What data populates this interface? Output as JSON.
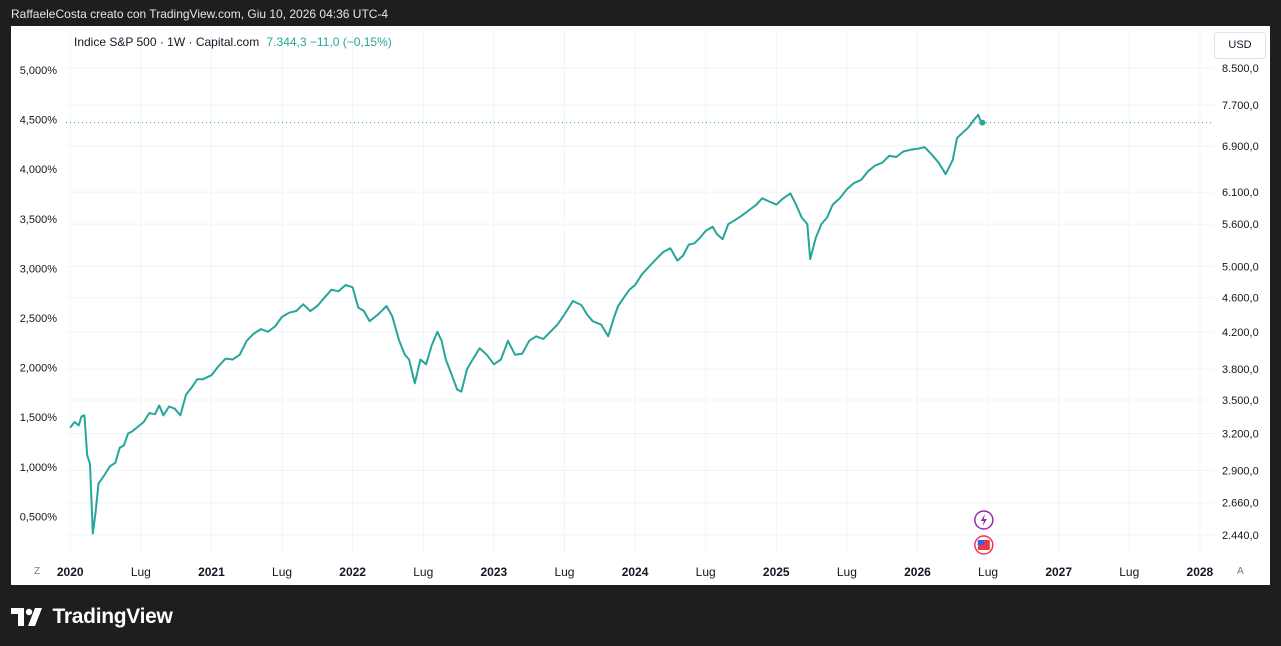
{
  "header": {
    "title": "RaffaeleCosta creato con TradingView.com, Giu 10, 2026 04:36 UTC-4"
  },
  "legend": {
    "symbol": "Indice S&P 500 · 1W · Capital.com",
    "values": "7.344,3  −11,0 (−0,15%)"
  },
  "currency_button": "USD",
  "scale_buttons": {
    "left": "Z",
    "right": "A"
  },
  "footer": {
    "brand": "TradingView"
  },
  "colors": {
    "series": "#26a69a",
    "background": "#ffffff",
    "frame": "#1e1e1e",
    "grid": "#f0f3fa"
  },
  "chart_data": {
    "type": "line",
    "title": "Indice S&P 500 · 1W · Capital.com",
    "left_axis_ticks": [
      "5,000%",
      "4,500%",
      "4,000%",
      "3,500%",
      "3,000%",
      "2,500%",
      "2,000%",
      "1,500%",
      "1,000%",
      "0,500%"
    ],
    "right_axis_ticks": [
      "8.500,0",
      "7.700,0",
      "6.900,0",
      "6.100,0",
      "5.600,0",
      "5.000,0",
      "4.600,0",
      "4.200,0",
      "3.800,0",
      "3.500,0",
      "3.200,0",
      "2.900,0",
      "2.660,0",
      "2.440,0"
    ],
    "x_axis_ticks": [
      "2020",
      "Lug",
      "2021",
      "Lug",
      "2022",
      "Lug",
      "2023",
      "Lug",
      "2024",
      "Lug",
      "2025",
      "Lug",
      "2026",
      "Lug",
      "2027",
      "Lug",
      "2028"
    ],
    "scale": "log",
    "last_value": 7344.3,
    "series": [
      {
        "values": [
          [
            2020.0,
            3250
          ],
          [
            2020.03,
            3300
          ],
          [
            2020.06,
            3270
          ],
          [
            2020.08,
            3350
          ],
          [
            2020.1,
            3360
          ],
          [
            2020.12,
            3020
          ],
          [
            2020.14,
            2950
          ],
          [
            2020.16,
            2450
          ],
          [
            2020.18,
            2600
          ],
          [
            2020.2,
            2800
          ],
          [
            2020.24,
            2860
          ],
          [
            2020.28,
            2930
          ],
          [
            2020.32,
            2960
          ],
          [
            2020.35,
            3080
          ],
          [
            2020.38,
            3100
          ],
          [
            2020.41,
            3200
          ],
          [
            2020.44,
            3220
          ],
          [
            2020.48,
            3260
          ],
          [
            2020.52,
            3300
          ],
          [
            2020.56,
            3380
          ],
          [
            2020.6,
            3370
          ],
          [
            2020.63,
            3450
          ],
          [
            2020.66,
            3360
          ],
          [
            2020.7,
            3440
          ],
          [
            2020.74,
            3420
          ],
          [
            2020.78,
            3360
          ],
          [
            2020.82,
            3550
          ],
          [
            2020.86,
            3620
          ],
          [
            2020.9,
            3700
          ],
          [
            2020.94,
            3700
          ],
          [
            2021.0,
            3740
          ],
          [
            2021.05,
            3830
          ],
          [
            2021.1,
            3910
          ],
          [
            2021.15,
            3900
          ],
          [
            2021.2,
            3950
          ],
          [
            2021.25,
            4100
          ],
          [
            2021.3,
            4180
          ],
          [
            2021.35,
            4230
          ],
          [
            2021.4,
            4200
          ],
          [
            2021.45,
            4260
          ],
          [
            2021.5,
            4370
          ],
          [
            2021.55,
            4420
          ],
          [
            2021.6,
            4440
          ],
          [
            2021.65,
            4520
          ],
          [
            2021.7,
            4440
          ],
          [
            2021.75,
            4500
          ],
          [
            2021.8,
            4600
          ],
          [
            2021.85,
            4700
          ],
          [
            2021.9,
            4680
          ],
          [
            2021.95,
            4760
          ],
          [
            2022.0,
            4730
          ],
          [
            2022.04,
            4480
          ],
          [
            2022.08,
            4440
          ],
          [
            2022.12,
            4320
          ],
          [
            2022.18,
            4400
          ],
          [
            2022.24,
            4500
          ],
          [
            2022.28,
            4380
          ],
          [
            2022.33,
            4100
          ],
          [
            2022.37,
            3950
          ],
          [
            2022.4,
            3900
          ],
          [
            2022.44,
            3660
          ],
          [
            2022.48,
            3900
          ],
          [
            2022.52,
            3850
          ],
          [
            2022.56,
            4050
          ],
          [
            2022.6,
            4200
          ],
          [
            2022.63,
            4100
          ],
          [
            2022.66,
            3900
          ],
          [
            2022.7,
            3750
          ],
          [
            2022.74,
            3600
          ],
          [
            2022.77,
            3580
          ],
          [
            2022.81,
            3800
          ],
          [
            2022.85,
            3900
          ],
          [
            2022.9,
            4020
          ],
          [
            2022.95,
            3950
          ],
          [
            2023.0,
            3850
          ],
          [
            2023.05,
            3900
          ],
          [
            2023.1,
            4100
          ],
          [
            2023.15,
            3950
          ],
          [
            2023.2,
            3960
          ],
          [
            2023.25,
            4100
          ],
          [
            2023.3,
            4150
          ],
          [
            2023.35,
            4120
          ],
          [
            2023.4,
            4200
          ],
          [
            2023.45,
            4280
          ],
          [
            2023.5,
            4400
          ],
          [
            2023.56,
            4560
          ],
          [
            2023.62,
            4510
          ],
          [
            2023.66,
            4400
          ],
          [
            2023.7,
            4320
          ],
          [
            2023.76,
            4280
          ],
          [
            2023.81,
            4150
          ],
          [
            2023.85,
            4360
          ],
          [
            2023.88,
            4500
          ],
          [
            2023.92,
            4600
          ],
          [
            2023.96,
            4700
          ],
          [
            2024.0,
            4760
          ],
          [
            2024.05,
            4900
          ],
          [
            2024.1,
            5000
          ],
          [
            2024.15,
            5100
          ],
          [
            2024.2,
            5200
          ],
          [
            2024.25,
            5250
          ],
          [
            2024.3,
            5080
          ],
          [
            2024.34,
            5150
          ],
          [
            2024.38,
            5300
          ],
          [
            2024.42,
            5320
          ],
          [
            2024.46,
            5400
          ],
          [
            2024.5,
            5500
          ],
          [
            2024.55,
            5560
          ],
          [
            2024.58,
            5450
          ],
          [
            2024.62,
            5380
          ],
          [
            2024.66,
            5600
          ],
          [
            2024.7,
            5650
          ],
          [
            2024.75,
            5720
          ],
          [
            2024.8,
            5800
          ],
          [
            2024.86,
            5900
          ],
          [
            2024.9,
            6000
          ],
          [
            2024.95,
            5950
          ],
          [
            2025.0,
            5900
          ],
          [
            2025.05,
            6000
          ],
          [
            2025.1,
            6080
          ],
          [
            2025.14,
            5900
          ],
          [
            2025.18,
            5700
          ],
          [
            2025.22,
            5600
          ],
          [
            2025.24,
            5100
          ],
          [
            2025.28,
            5400
          ],
          [
            2025.32,
            5600
          ],
          [
            2025.36,
            5700
          ],
          [
            2025.4,
            5900
          ],
          [
            2025.45,
            6000
          ],
          [
            2025.5,
            6150
          ],
          [
            2025.55,
            6250
          ],
          [
            2025.6,
            6300
          ],
          [
            2025.65,
            6450
          ],
          [
            2025.7,
            6550
          ],
          [
            2025.75,
            6600
          ],
          [
            2025.8,
            6720
          ],
          [
            2025.85,
            6700
          ],
          [
            2025.9,
            6800
          ],
          [
            2025.95,
            6830
          ],
          [
            2026.0,
            6850
          ],
          [
            2026.05,
            6880
          ],
          [
            2026.1,
            6750
          ],
          [
            2026.15,
            6600
          ],
          [
            2026.2,
            6400
          ],
          [
            2026.25,
            6650
          ],
          [
            2026.28,
            7050
          ],
          [
            2026.32,
            7150
          ],
          [
            2026.36,
            7250
          ],
          [
            2026.4,
            7400
          ],
          [
            2026.43,
            7500
          ],
          [
            2026.45,
            7360
          ],
          [
            2026.46,
            7344.3
          ]
        ]
      }
    ]
  }
}
